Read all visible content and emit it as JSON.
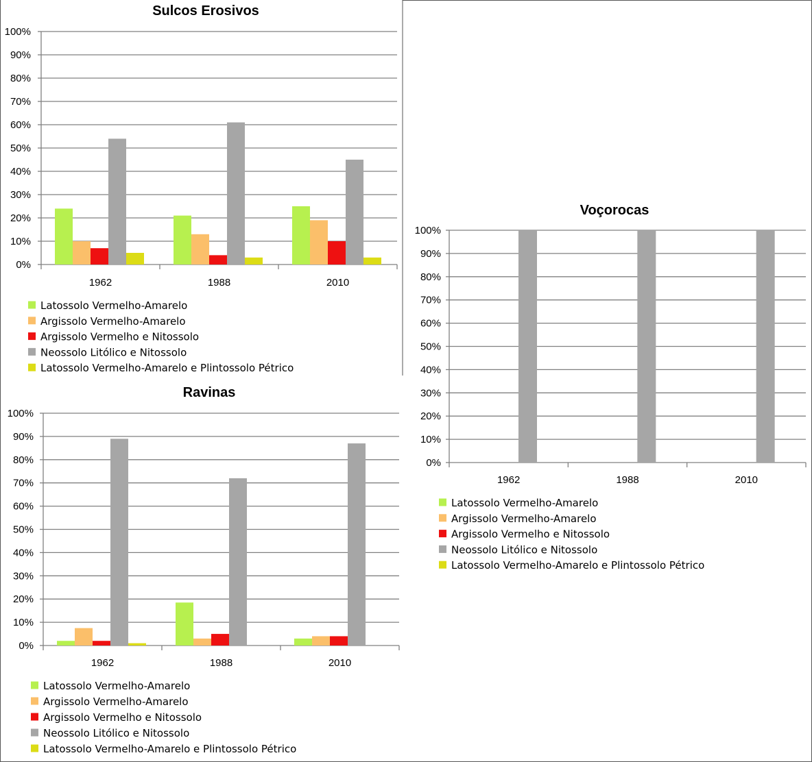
{
  "chart_data": [
    {
      "type": "bar",
      "title": "Sulcos Erosivos",
      "categories": [
        "1962",
        "1988",
        "2010"
      ],
      "ylim": [
        0,
        100
      ],
      "y_ticks": [
        "0%",
        "10%",
        "20%",
        "30%",
        "40%",
        "50%",
        "60%",
        "70%",
        "80%",
        "90%",
        "100%"
      ],
      "grid": true,
      "legend_position": "bottom",
      "series": [
        {
          "name": "Latossolo Vermelho-Amarelo",
          "color": "#b7f04f",
          "values": [
            24,
            21,
            25
          ]
        },
        {
          "name": "Argissolo Vermelho-Amarelo",
          "color": "#fbbf6a",
          "values": [
            10,
            13,
            19
          ]
        },
        {
          "name": "Argissolo Vermelho e Nitossolo",
          "color": "#ee1111",
          "values": [
            7,
            4,
            10
          ]
        },
        {
          "name": "Neossolo Litólico e Nitossolo",
          "color": "#a6a6a6",
          "values": [
            54,
            61,
            45
          ]
        },
        {
          "name": "Latossolo Vermelho-Amarelo e Plintossolo Pétrico",
          "color": "#dcdc16",
          "values": [
            5,
            3,
            3
          ]
        }
      ]
    },
    {
      "type": "bar",
      "title": "Ravinas",
      "categories": [
        "1962",
        "1988",
        "2010"
      ],
      "ylim": [
        0,
        100
      ],
      "y_ticks": [
        "0%",
        "10%",
        "20%",
        "30%",
        "40%",
        "50%",
        "60%",
        "70%",
        "80%",
        "90%",
        "100%"
      ],
      "grid": true,
      "legend_position": "bottom",
      "series": [
        {
          "name": "Latossolo Vermelho-Amarelo",
          "color": "#b7f04f",
          "values": [
            2,
            18.5,
            3
          ]
        },
        {
          "name": "Argissolo Vermelho-Amarelo",
          "color": "#fbbf6a",
          "values": [
            7.5,
            3,
            4
          ]
        },
        {
          "name": "Argissolo Vermelho e Nitossolo",
          "color": "#ee1111",
          "values": [
            2,
            5,
            4
          ]
        },
        {
          "name": "Neossolo Litólico e Nitossolo",
          "color": "#a6a6a6",
          "values": [
            89,
            72,
            87
          ]
        },
        {
          "name": "Latossolo Vermelho-Amarelo e Plintossolo Pétrico",
          "color": "#dcdc16",
          "values": [
            1,
            0,
            0
          ]
        }
      ]
    },
    {
      "type": "bar",
      "title": "Voçorocas",
      "categories": [
        "1962",
        "1988",
        "2010"
      ],
      "ylim": [
        0,
        100
      ],
      "y_ticks": [
        "0%",
        "10%",
        "20%",
        "30%",
        "40%",
        "50%",
        "60%",
        "70%",
        "80%",
        "90%",
        "100%"
      ],
      "grid": true,
      "legend_position": "bottom",
      "series": [
        {
          "name": "Latossolo Vermelho-Amarelo",
          "color": "#b7f04f",
          "values": [
            0,
            0,
            0
          ]
        },
        {
          "name": "Argissolo Vermelho-Amarelo",
          "color": "#fbbf6a",
          "values": [
            0,
            0,
            0
          ]
        },
        {
          "name": "Argissolo Vermelho e Nitossolo",
          "color": "#ee1111",
          "values": [
            0,
            0,
            0
          ]
        },
        {
          "name": "Neossolo Litólico e Nitossolo",
          "color": "#a6a6a6",
          "values": [
            100,
            100,
            100
          ]
        },
        {
          "name": "Latossolo Vermelho-Amarelo e Plintossolo Pétrico",
          "color": "#dcdc16",
          "values": [
            0,
            0,
            0
          ]
        }
      ]
    }
  ]
}
